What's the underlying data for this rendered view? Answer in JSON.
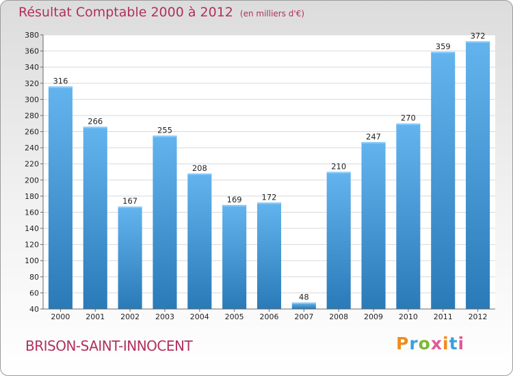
{
  "title": "Résultat Comptable 2000 à 2012",
  "unit": "(en milliers d'€)",
  "commune": "BRISON-SAINT-INNOCENT",
  "logo": {
    "text": "Proxiti",
    "colors": [
      "#f08c1c",
      "#3aa0dc",
      "#7cb832",
      "#e05a96",
      "#f08c1c",
      "#3aa0dc",
      "#e05a96"
    ]
  },
  "colors": {
    "title": "#b0305e",
    "bar_light": "#63b4ee",
    "bar_dark": "#2a7ab8",
    "grid": "#d8d8d8"
  },
  "chart_data": {
    "type": "bar",
    "categories": [
      "2000",
      "2001",
      "2002",
      "2003",
      "2004",
      "2005",
      "2006",
      "2007",
      "2008",
      "2009",
      "2010",
      "2011",
      "2012"
    ],
    "values": [
      316,
      266,
      167,
      255,
      208,
      169,
      172,
      48,
      210,
      247,
      270,
      359,
      372
    ],
    "ylim": [
      40,
      380
    ],
    "yticks": [
      40,
      60,
      80,
      100,
      120,
      140,
      160,
      180,
      200,
      220,
      240,
      260,
      280,
      300,
      320,
      340,
      360,
      380
    ],
    "grid": true,
    "title": "Résultat Comptable 2000 à 2012",
    "xlabel": "",
    "ylabel": ""
  }
}
